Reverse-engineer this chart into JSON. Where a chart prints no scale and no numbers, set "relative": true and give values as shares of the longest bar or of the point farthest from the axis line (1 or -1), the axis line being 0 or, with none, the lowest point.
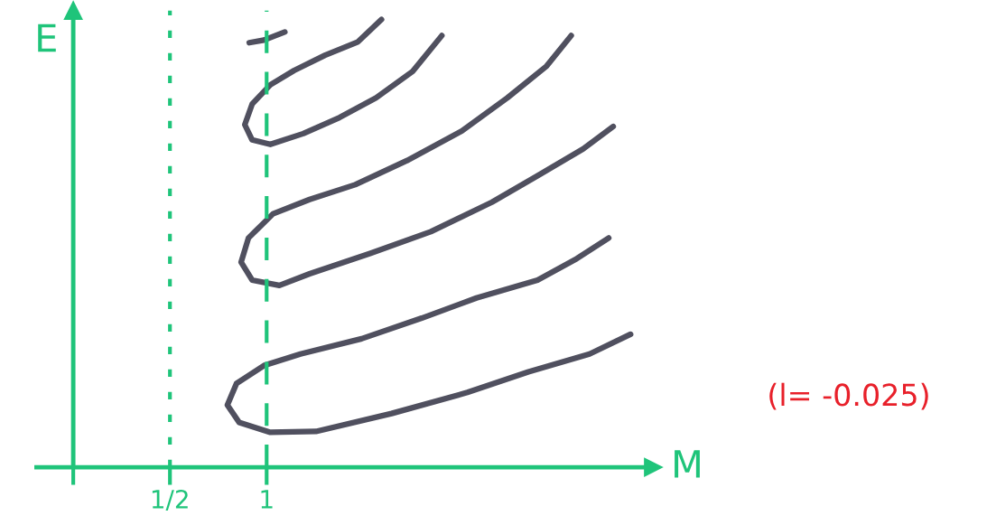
{
  "chart_data": {
    "type": "line",
    "relative": true,
    "xlabel": "M",
    "ylabel": "E",
    "xlim": [
      -0.19,
      3.0
    ],
    "xticks": [
      {
        "value": 0,
        "label": null
      },
      {
        "value": 0.5,
        "label": "1/2"
      },
      1
    ],
    "tick_labels": "x",
    "grid": false,
    "legend": false,
    "marker": "none",
    "line_style": "solid",
    "ref_lines": [
      {
        "axis": "x",
        "value": 0,
        "color": "#1fc47a",
        "line_style": "solid"
      },
      {
        "axis": "x",
        "value": 0.5,
        "color": "#1fc47a",
        "line_style": "dotted"
      },
      {
        "axis": "x",
        "value": 1,
        "color": "#1fc47a",
        "line_style": "dashed"
      }
    ],
    "annotations": [
      "(l= -0.025)"
    ],
    "series": [
      {
        "color": "#50505f",
        "x": [
          0.91,
          0.986,
          1.094
        ],
        "values": [
          0.948,
          0.954,
          0.972
        ]
      },
      {
        "color": "#50505f",
        "x": [
          1.594,
          1.472,
          1.302,
          1.142,
          1.019,
          0.925,
          0.887,
          0.925,
          1.019,
          1.189,
          1.377,
          1.566,
          1.755,
          1.906
        ],
        "values": [
          1.0,
          0.95,
          0.92,
          0.886,
          0.854,
          0.811,
          0.765,
          0.731,
          0.721,
          0.745,
          0.781,
          0.825,
          0.884,
          0.964
        ]
      },
      {
        "color": "#50505f",
        "x": [
          2.575,
          2.448,
          2.245,
          2.009,
          1.726,
          1.458,
          1.222,
          1.033,
          0.906,
          0.868,
          0.925,
          1.066,
          1.222,
          1.538,
          1.849,
          2.165,
          2.401,
          2.637,
          2.792
        ],
        "values": [
          0.964,
          0.896,
          0.825,
          0.751,
          0.685,
          0.631,
          0.598,
          0.566,
          0.512,
          0.458,
          0.418,
          0.406,
          0.432,
          0.478,
          0.526,
          0.592,
          0.651,
          0.711,
          0.761
        ]
      },
      {
        "color": "#50505f",
        "x": [
          2.769,
          2.604,
          2.401,
          2.085,
          1.802,
          1.491,
          1.175,
          0.986,
          0.844,
          0.797,
          0.858,
          1.019,
          1.255,
          1.646,
          2.038,
          2.354,
          2.67,
          2.882
        ],
        "values": [
          0.512,
          0.466,
          0.418,
          0.378,
          0.333,
          0.287,
          0.253,
          0.227,
          0.187,
          0.139,
          0.1,
          0.078,
          0.08,
          0.12,
          0.167,
          0.213,
          0.253,
          0.297
        ]
      }
    ]
  }
}
